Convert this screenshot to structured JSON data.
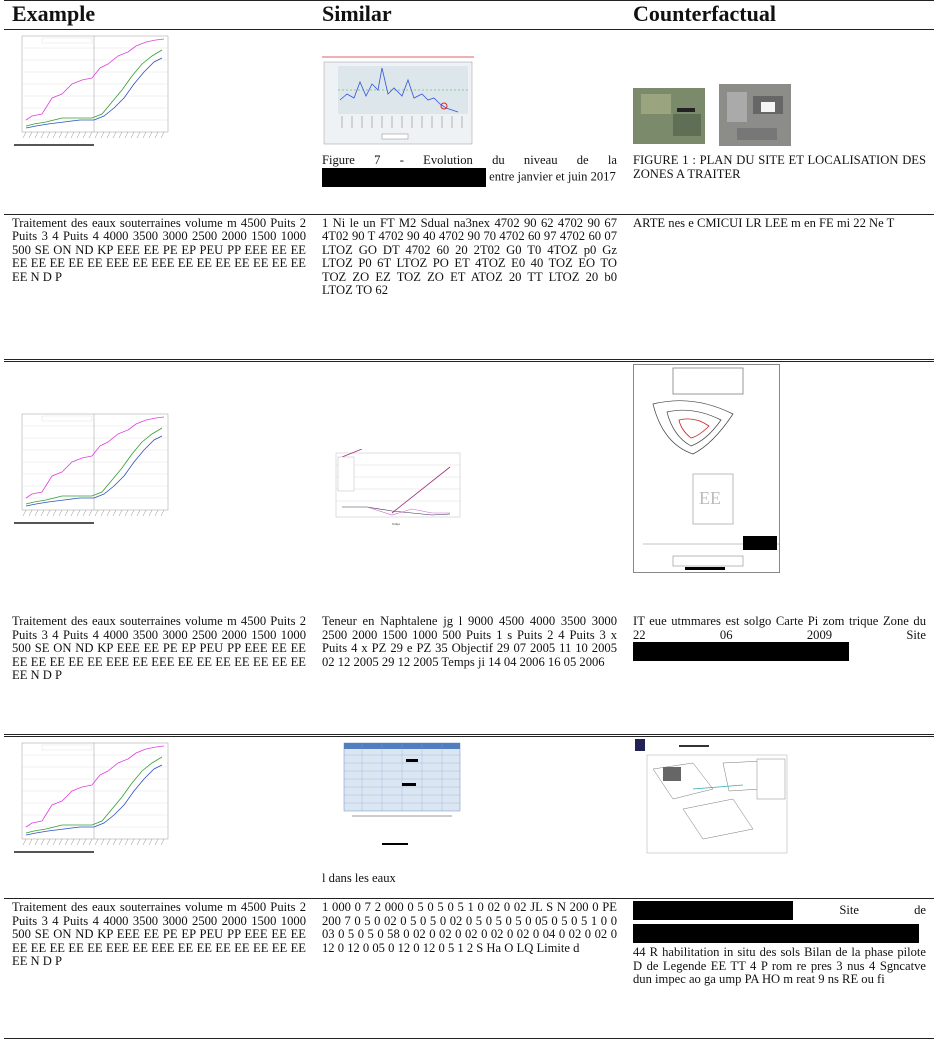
{
  "header": {
    "col1": "Example",
    "col2": "Similar",
    "col3": "Counterfactual"
  },
  "groups": [
    {
      "captions": {
        "col2_before": "Figure 7 - Evolution du niveau de la",
        "col2_after": "entre janvier et juin 2017",
        "col3": "FIGURE 1 : PLAN DU SITE ET LOCALISATION DES ZONES A TRAITER"
      },
      "texts": [
        "Traitement des eaux souterraines volume m 4500 Puits 2 Puits 3 4 Puits 4 4000 3500 3000 2500 2000 1500 1000 500 SE ON ND KP EEE EE PE EP PEU PP EEE EE EE EE EE EE EE EE EEE EE EEE EE EE EE EE EE EE EE EE N D P",
        "1 Ni le un FT M2 Sdual na3nex 4702 90 62 4702 90 67 4T02 90 T 4702 90 40 4702 90 70 4702 60 97 4702 60 07 LTOZ GO DT 4702 60 20 2T02 G0 T0 4TOZ p0 Gz LTOZ P0 6T LTOZ PO ET 4TOZ E0 40 TOZ EO TO TOZ ZO EZ TOZ ZO ET ATOZ 20 TT LTOZ 20 b0 LTOZ TO 62",
        "ARTE nes e CMICUI LR LEE m en FE mi 22 Ne T"
      ]
    },
    {
      "texts": [
        "Traitement des eaux souterraines volume m 4500 Puits 2 Puits 3 4 Puits 4 4000 3500 3000 2500 2000 1500 1000 500 SE ON ND KP EEE EE PE EP PEU PP EEE EE EE EE EE EE EE EE EEE EE EEE EE EE EE EE EE EE EE EE N D P",
        "Teneur en Naphtalene jg l 9000 4500 4000 3500 3000 2500 2000 1500 1000 500 Puits 1 s Puits 2 4 Puits 3 x Puits 4 x PZ 29 e PZ 35 Objectif 29 07 2005 11 10 2005 02 12 2005 29 12 2005 Temps ji 14 04 2006 16 05 2006",
        "IT eue utmmares est solgo Carte Pi zom trique Zone du 22 06 2009 Site"
      ]
    },
    {
      "captions": {
        "col2": "l dans les eaux"
      },
      "texts": [
        "Traitement des eaux souterraines volume m 4500 Puits 2 Puits 3 4 Puits 4 4000 3500 3000 2500 2000 1500 1000 500 SE ON ND KP EEE EE PE EP PEU PP EEE EE EE EE EE EE EE EE EEE EE EEE EE EE EE EE EE EE EE EE N D P",
        "1 000 0 7 2 000 0 5 0 5 0 5 1 0 02 0 02 JL S N 200 0 PE 200 7 0 5 0 02 0 5 0 5 0 02 0 5 0 5 0 5 0 05 0 5 0 5 1 0 0 03 0 5 0 5 0 58 0 02 0 02 0 02 0 02 0 02 0 04 0 02 0 02 0 12 0 12 0 05 0 12 0 12 0 5 1 2 S Ha O LQ Limite d",
        "Site de",
        "44 R habilitation in situ des sols Bilan de la phase pilote D de Legende EE TT 4 P rom re pres 3 nus 4 Sgncatve dun impec ao ga ump PA HO m reat 9 ns RE ou fi"
      ]
    }
  ]
}
